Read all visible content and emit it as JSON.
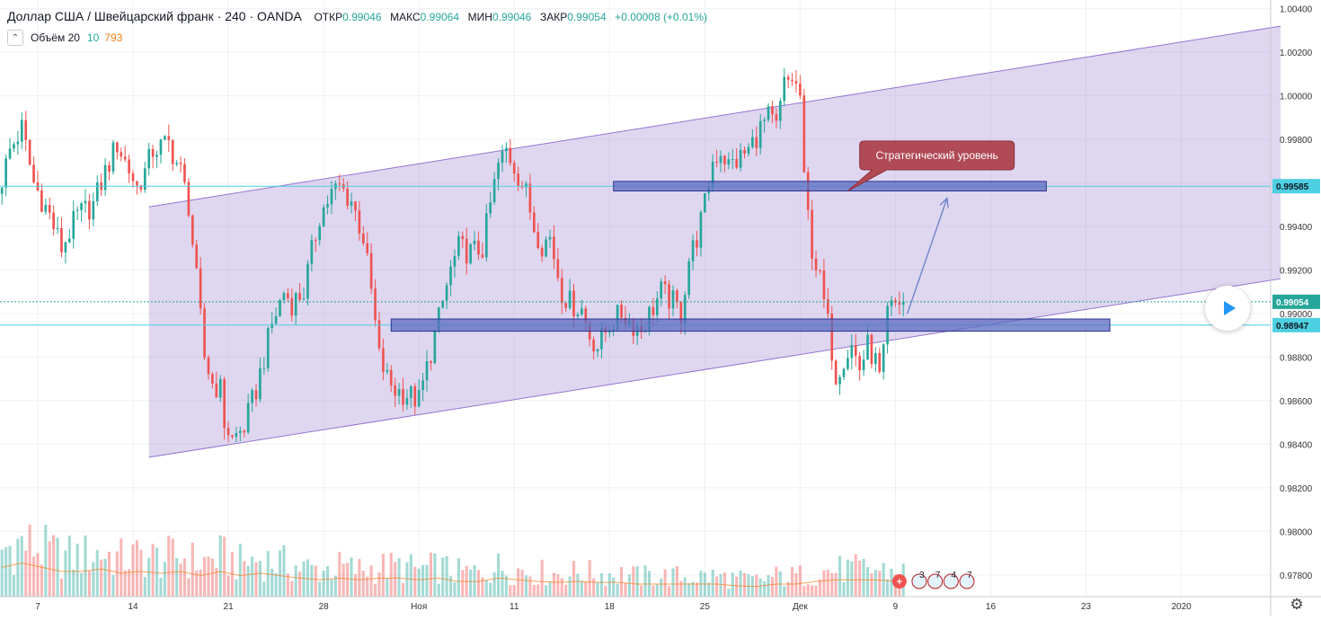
{
  "header": {
    "title": "Доллар США / Швейцарский франк · 240 · OANDA",
    "ohlc": [
      {
        "label": "ОТКР",
        "value": "0.99046"
      },
      {
        "label": "МАКС",
        "value": "0.99064"
      },
      {
        "label": "МИН",
        "value": "0.99046"
      },
      {
        "label": "ЗАКР",
        "value": "0.99054"
      }
    ],
    "change": "+0.00008 (+0.01%)"
  },
  "volume_legend": {
    "label": "Объём 20",
    "v1": "10",
    "v2": "793"
  },
  "annotation": {
    "text": "Стратегический уровень"
  },
  "price_labels": {
    "resistance": "0.99585",
    "current": "0.99054",
    "support": "0.98947"
  },
  "colors": {
    "up": "#26a69a",
    "down": "#ef5350",
    "channel_fill": "#b39ddb",
    "level_fill": "#5c6bc0",
    "callout": "#b04a55",
    "arrow": "#6f86c9"
  },
  "events": [
    "3",
    "7",
    "4",
    "7"
  ],
  "chart_data": {
    "type": "candlestick",
    "series_name": "USD/CHF",
    "ylim": [
      0.977,
      1.0044
    ],
    "y_ticks": [
      "1.00400",
      "1.00200",
      "1.00000",
      "0.99800",
      "0.99600",
      "0.99400",
      "0.99200",
      "0.99000",
      "0.98800",
      "0.98600",
      "0.98400",
      "0.98200",
      "0.98000",
      "0.97800"
    ],
    "x_ticks": [
      "7",
      "14",
      "21",
      "28",
      "Ноя",
      "11",
      "18",
      "25",
      "Дек",
      "9",
      "16",
      "23",
      "2020"
    ],
    "x_tick_index": [
      9,
      33,
      57,
      81,
      105,
      129,
      153,
      177,
      201,
      225,
      249,
      273,
      297
    ],
    "bars_path": [
      [
        0,
        0.9955
      ],
      [
        3,
        0.9975
      ],
      [
        6,
        0.9985
      ],
      [
        9,
        0.996
      ],
      [
        13,
        0.9945
      ],
      [
        16,
        0.993
      ],
      [
        20,
        0.9945
      ],
      [
        24,
        0.995
      ],
      [
        27,
        0.9965
      ],
      [
        30,
        0.9978
      ],
      [
        32,
        0.997
      ],
      [
        35,
        0.9958
      ],
      [
        37,
        0.9965
      ],
      [
        39,
        0.9975
      ],
      [
        43,
        0.9978
      ],
      [
        46,
        0.9965
      ],
      [
        48,
        0.995
      ],
      [
        50,
        0.9915
      ],
      [
        52,
        0.988
      ],
      [
        54,
        0.9868
      ],
      [
        56,
        0.9865
      ],
      [
        57,
        0.985
      ],
      [
        59,
        0.9842
      ],
      [
        62,
        0.9848
      ],
      [
        65,
        0.9865
      ],
      [
        67,
        0.988
      ],
      [
        69,
        0.9895
      ],
      [
        72,
        0.991
      ],
      [
        74,
        0.9905
      ],
      [
        77,
        0.991
      ],
      [
        79,
        0.9928
      ],
      [
        81,
        0.9945
      ],
      [
        84,
        0.9955
      ],
      [
        86,
        0.9958
      ],
      [
        89,
        0.9952
      ],
      [
        92,
        0.9935
      ],
      [
        94,
        0.991
      ],
      [
        96,
        0.988
      ],
      [
        98,
        0.987
      ],
      [
        100,
        0.9865
      ],
      [
        103,
        0.9863
      ],
      [
        106,
        0.986
      ],
      [
        108,
        0.9875
      ],
      [
        110,
        0.989
      ],
      [
        112,
        0.9905
      ],
      [
        114,
        0.992
      ],
      [
        116,
        0.993
      ],
      [
        119,
        0.9928
      ],
      [
        122,
        0.993
      ],
      [
        124,
        0.995
      ],
      [
        126,
        0.9968
      ],
      [
        128,
        0.9975
      ],
      [
        130,
        0.9968
      ],
      [
        133,
        0.9955
      ],
      [
        135,
        0.994
      ],
      [
        137,
        0.9932
      ],
      [
        139,
        0.9935
      ],
      [
        142,
        0.991
      ],
      [
        144,
        0.9905
      ],
      [
        147,
        0.9902
      ],
      [
        149,
        0.989
      ],
      [
        151,
        0.9885
      ],
      [
        154,
        0.9895
      ],
      [
        157,
        0.99
      ],
      [
        160,
        0.9895
      ],
      [
        162,
        0.9893
      ],
      [
        165,
        0.9903
      ],
      [
        167,
        0.991
      ],
      [
        170,
        0.9905
      ],
      [
        172,
        0.99
      ],
      [
        174,
        0.9925
      ],
      [
        176,
        0.9935
      ],
      [
        178,
        0.995
      ],
      [
        180,
        0.997
      ],
      [
        182,
        0.9975
      ],
      [
        184,
        0.9968
      ],
      [
        186,
        0.997
      ],
      [
        189,
        0.9975
      ],
      [
        192,
        0.9985
      ],
      [
        194,
        0.999
      ],
      [
        196,
        0.9985
      ],
      [
        198,
        1.0005
      ],
      [
        200,
        1.0008
      ],
      [
        202,
        1.0
      ],
      [
        203,
        0.996
      ],
      [
        205,
        0.993
      ],
      [
        207,
        0.9915
      ],
      [
        209,
        0.9895
      ],
      [
        211,
        0.9872
      ],
      [
        213,
        0.988
      ],
      [
        215,
        0.9885
      ],
      [
        217,
        0.9875
      ],
      [
        219,
        0.9885
      ],
      [
        221,
        0.9878
      ],
      [
        222,
        0.987
      ],
      [
        223,
        0.988
      ],
      [
        224,
        0.99
      ],
      [
        226,
        0.9904
      ],
      [
        227,
        0.99054
      ]
    ],
    "volume_path": [
      [
        0,
        0.35
      ],
      [
        5,
        0.4
      ],
      [
        10,
        0.35
      ],
      [
        15,
        0.3
      ],
      [
        20,
        0.3
      ],
      [
        25,
        0.33
      ],
      [
        30,
        0.28
      ],
      [
        35,
        0.3
      ],
      [
        40,
        0.28
      ],
      [
        45,
        0.3
      ],
      [
        50,
        0.25
      ],
      [
        55,
        0.3
      ],
      [
        60,
        0.25
      ],
      [
        65,
        0.28
      ],
      [
        70,
        0.25
      ],
      [
        75,
        0.22
      ],
      [
        80,
        0.2
      ],
      [
        85,
        0.22
      ],
      [
        90,
        0.2
      ],
      [
        95,
        0.22
      ],
      [
        100,
        0.22
      ],
      [
        105,
        0.2
      ],
      [
        110,
        0.22
      ],
      [
        115,
        0.18
      ],
      [
        120,
        0.18
      ],
      [
        125,
        0.22
      ],
      [
        130,
        0.2
      ],
      [
        135,
        0.18
      ],
      [
        140,
        0.17
      ],
      [
        145,
        0.18
      ],
      [
        150,
        0.17
      ],
      [
        155,
        0.17
      ],
      [
        160,
        0.15
      ],
      [
        165,
        0.15
      ],
      [
        170,
        0.15
      ],
      [
        175,
        0.15
      ],
      [
        180,
        0.15
      ],
      [
        185,
        0.13
      ],
      [
        190,
        0.12
      ],
      [
        195,
        0.15
      ],
      [
        200,
        0.15
      ],
      [
        205,
        0.18
      ],
      [
        210,
        0.2
      ],
      [
        215,
        0.2
      ],
      [
        220,
        0.2
      ],
      [
        227,
        0.18
      ]
    ],
    "channel": {
      "lower_start": [
        37,
        0.9834
      ],
      "lower_end": [
        322,
        0.9916
      ],
      "upper_start": [
        37,
        0.9949
      ],
      "upper_end": [
        322,
        1.0032
      ]
    },
    "levels": [
      {
        "name": "Стратегический уровень",
        "price": 0.99585,
        "x0": 154,
        "x1": 263,
        "half_height": 0.00022
      },
      {
        "name": "support",
        "price": 0.98947,
        "x0": 98,
        "x1": 279,
        "half_height": 0.00028
      }
    ],
    "arrow": {
      "from": [
        228,
        0.99
      ],
      "to": [
        238,
        0.9953
      ]
    },
    "n_bars": 228,
    "x_extent": 320
  }
}
